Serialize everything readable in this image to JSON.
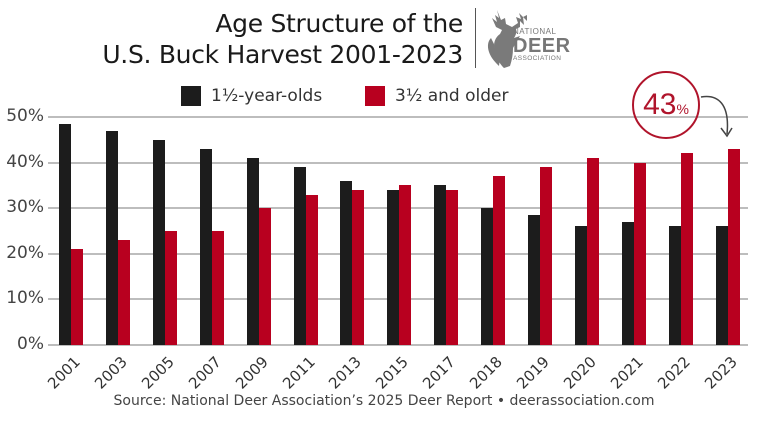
{
  "header": {
    "title_line1": "Age Structure of the",
    "title_line2": "U.S. Buck Harvest 2001-2023"
  },
  "logo": {
    "icon": "deer-head-icon",
    "line1": "NATIONAL",
    "line2": "DEER",
    "line3": "ASSOCIATION"
  },
  "legend": [
    {
      "label": "1½-year-olds",
      "color": "#1c1c1c"
    },
    {
      "label": "3½ and older",
      "color": "#b8001f"
    }
  ],
  "callout": {
    "value": "43",
    "unit": "%",
    "color": "#b0142b"
  },
  "source": "Source: National Deer Association’s 2025 Deer Report • deerassociation.com",
  "chart_data": {
    "type": "bar",
    "title": "Age Structure of the U.S. Buck Harvest 2001-2023",
    "xlabel": "",
    "ylabel": "",
    "ylim": [
      0,
      50
    ],
    "yticks": [
      "0%",
      "10%",
      "20%",
      "30%",
      "40%",
      "50%"
    ],
    "grid": true,
    "legend_position": "top",
    "categories": [
      "2001",
      "2003",
      "2005",
      "2007",
      "2009",
      "2011",
      "2013",
      "2015",
      "2017",
      "2018",
      "2019",
      "2020",
      "2021",
      "2022",
      "2023"
    ],
    "series": [
      {
        "name": "1½-year-olds",
        "color": "#1c1c1c",
        "values": [
          48.5,
          47,
          45,
          43,
          41,
          39,
          36,
          34,
          35,
          30,
          28.5,
          26,
          27,
          26,
          26
        ]
      },
      {
        "name": "3½ and older",
        "color": "#b8001f",
        "values": [
          21,
          23,
          25,
          25,
          30,
          33,
          34,
          35,
          34,
          37,
          39,
          41,
          40,
          42,
          43
        ]
      }
    ],
    "annotations": [
      {
        "text": "43%",
        "target": "2023 · 3½ and older"
      }
    ]
  }
}
